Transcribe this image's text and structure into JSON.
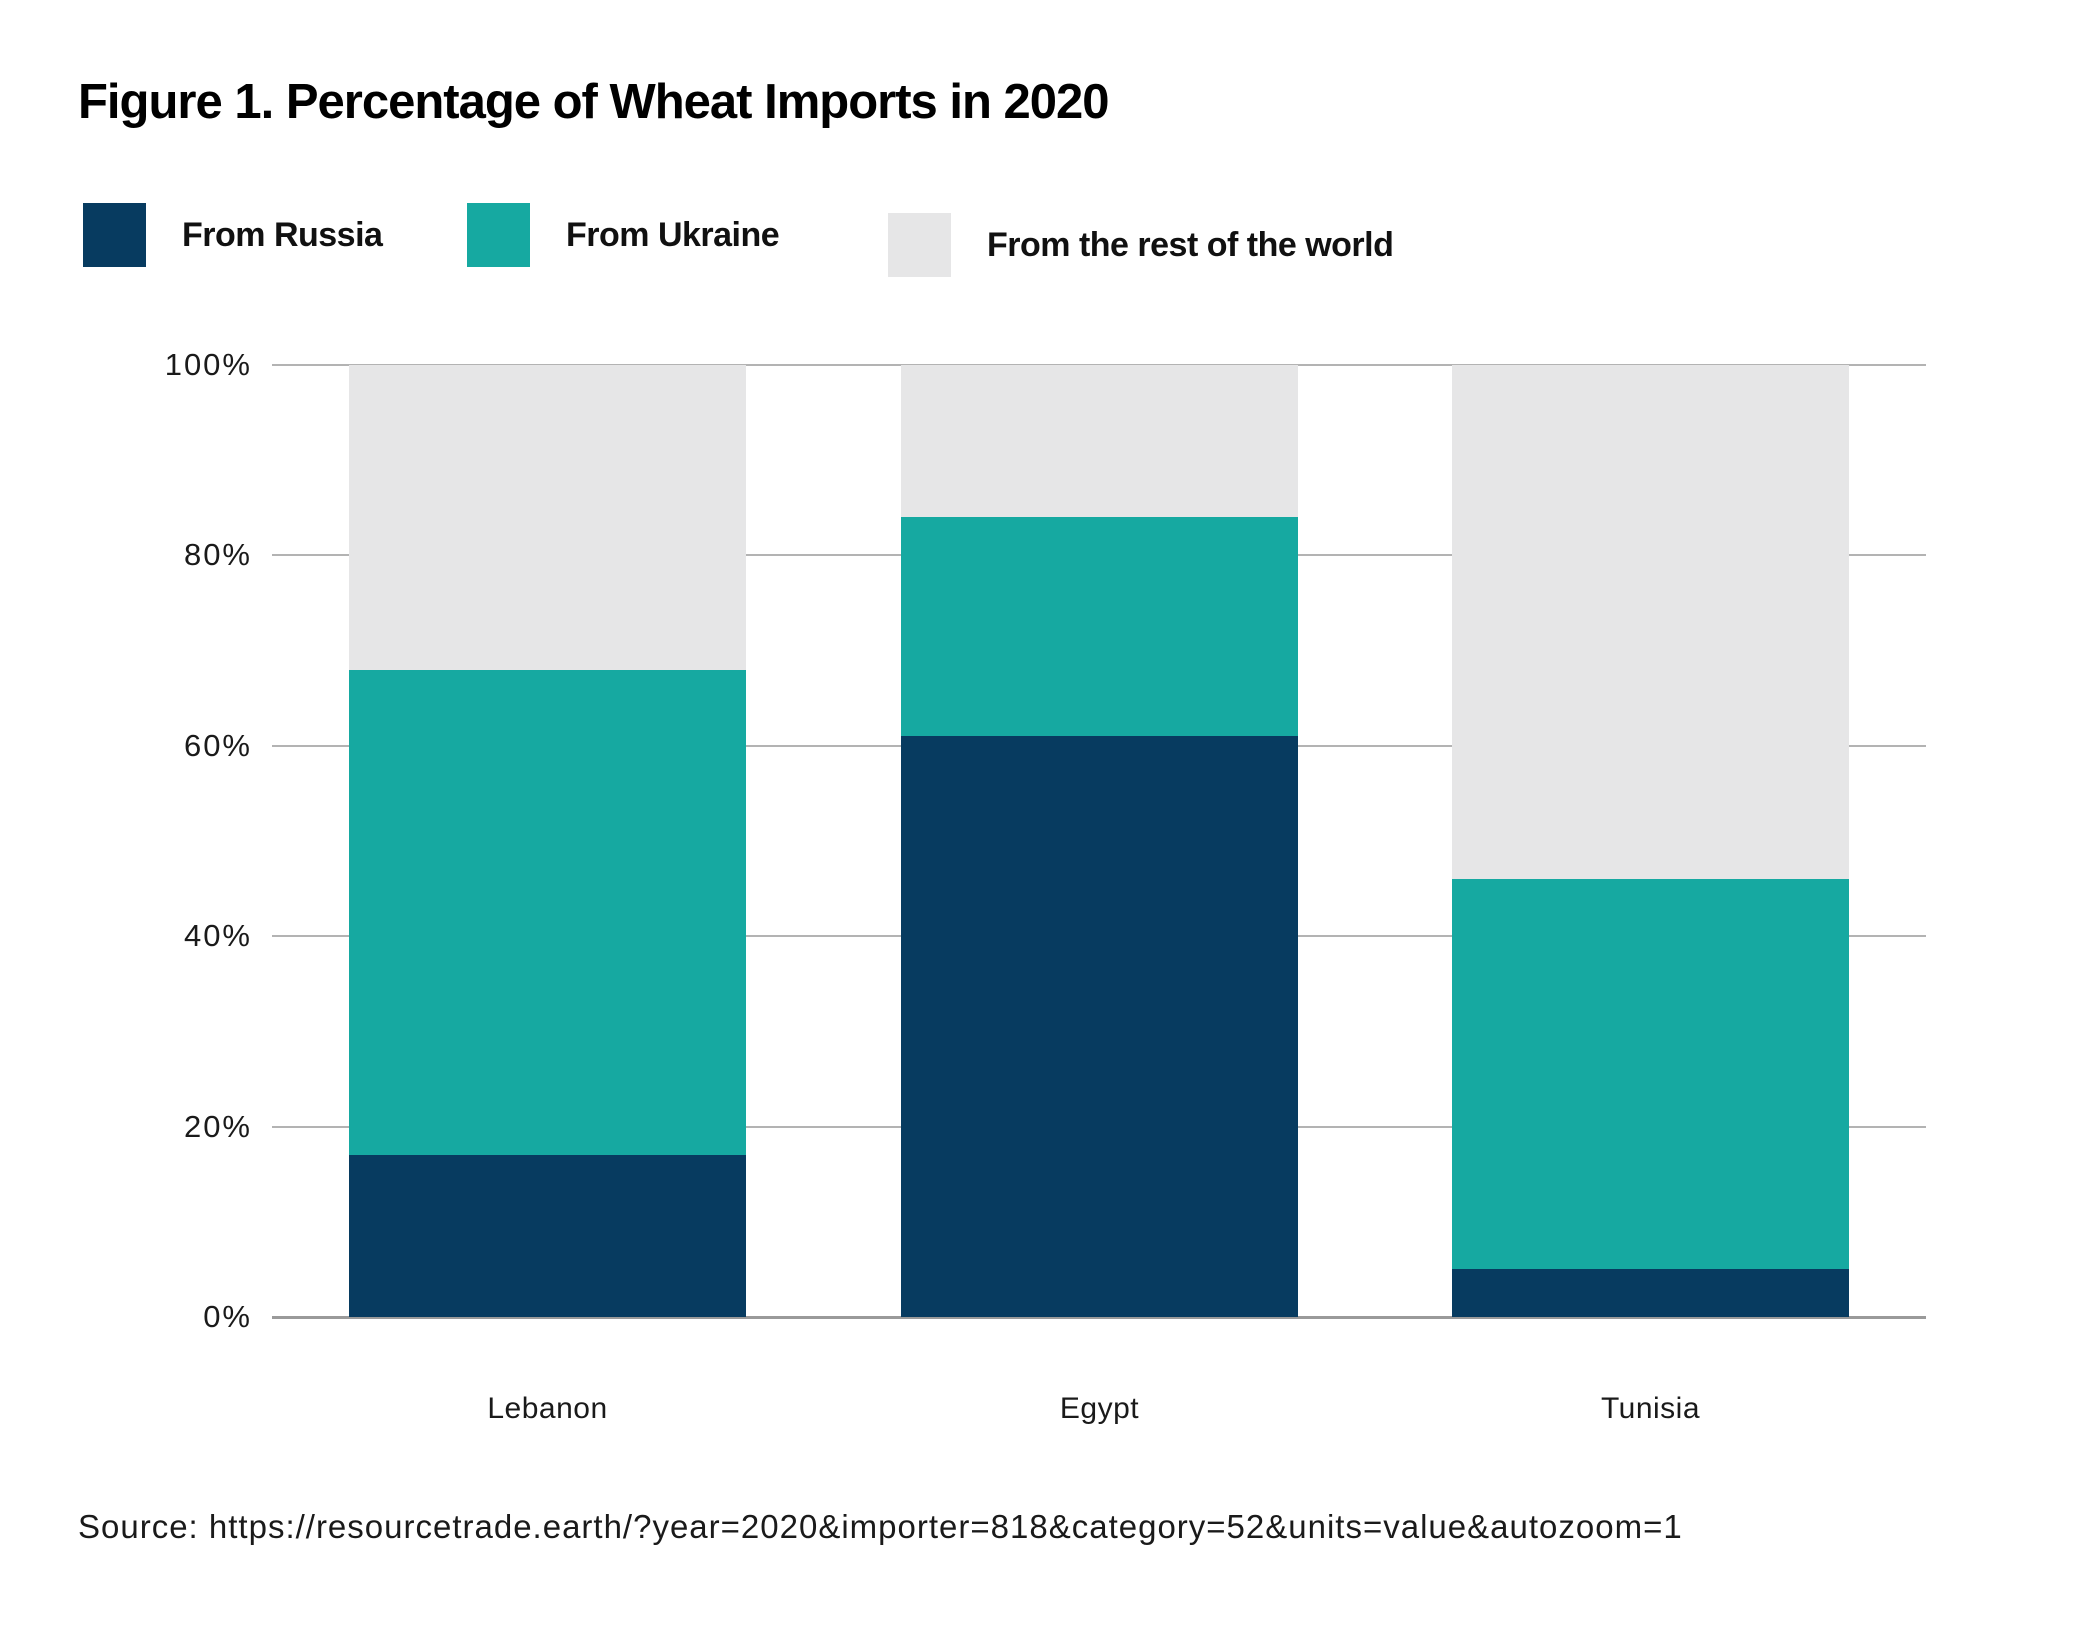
{
  "figure": {
    "title": "Figure 1. Percentage of Wheat Imports in 2020"
  },
  "legend": [
    {
      "label": "From Russia",
      "color": "#073b60"
    },
    {
      "label": "From Ukraine",
      "color": "#16a9a1"
    },
    {
      "label": "From the rest of the world",
      "color": "#e6e6e7"
    }
  ],
  "chart_data": {
    "type": "bar",
    "stacked": true,
    "title": "Figure 1. Percentage of Wheat Imports in 2020",
    "categories": [
      "Lebanon",
      "Egypt",
      "Tunisia"
    ],
    "series": [
      {
        "name": "From Russia",
        "color": "#073b60",
        "values": [
          17,
          61,
          5
        ]
      },
      {
        "name": "From Ukraine",
        "color": "#16a9a1",
        "values": [
          51,
          23,
          41
        ]
      },
      {
        "name": "From the rest of the world",
        "color": "#e6e6e7",
        "values": [
          32,
          16,
          54
        ]
      }
    ],
    "xlabel": "",
    "ylabel": "",
    "ylim": [
      0,
      100
    ],
    "ylabel_ticks": [
      "0%",
      "20%",
      "40%",
      "60%",
      "80%",
      "100%"
    ],
    "grid": true,
    "legend_position": "top"
  },
  "source": {
    "text": "Source: https://resourcetrade.earth/?year=2020&importer=818&category=52&units=value&autozoom=1"
  }
}
